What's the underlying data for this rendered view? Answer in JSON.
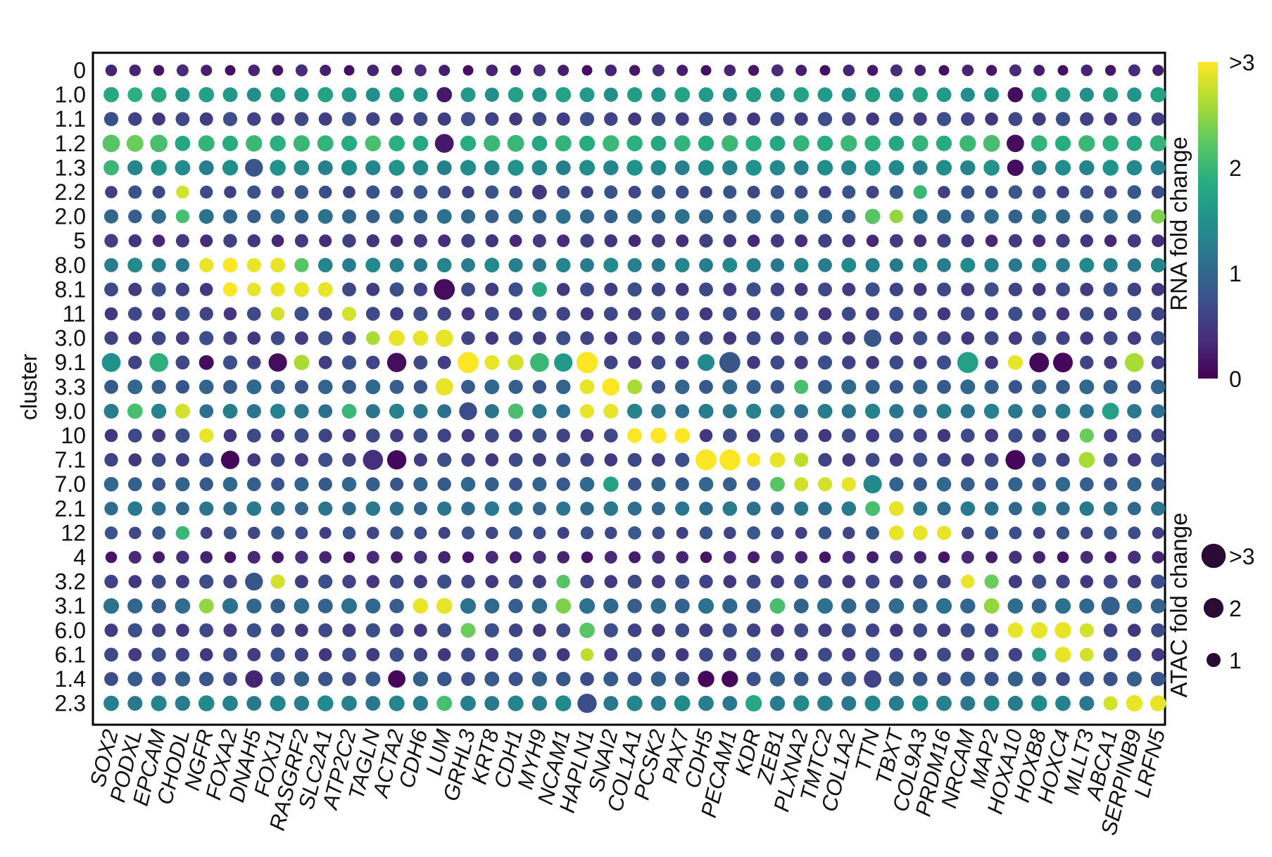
{
  "chart_data": {
    "type": "dot-matrix",
    "ylabel": "cluster",
    "xlabel": "",
    "rows": [
      "0",
      "1.0",
      "1.1",
      "1.2",
      "1.3",
      "2.2",
      "2.0",
      "5",
      "8.0",
      "8.1",
      "11",
      "3.0",
      "9.1",
      "3.3",
      "9.0",
      "10",
      "7.1",
      "7.0",
      "2.1",
      "12",
      "4",
      "3.2",
      "3.1",
      "6.0",
      "6.1",
      "1.4",
      "2.3"
    ],
    "columns": [
      "SOX2",
      "PODXL",
      "EPCAM",
      "CHODL",
      "NGFR",
      "FOXA2",
      "DNAH5",
      "FOXJ1",
      "RASGRF2",
      "SLC2A1",
      "ATP2C2",
      "TAGLN",
      "ACTA2",
      "CDH6",
      "LUM",
      "GRHL3",
      "KRT8",
      "CDH1",
      "MYH9",
      "NCAM1",
      "HAPLN1",
      "SNAI2",
      "COL1A1",
      "PCSK2",
      "PAX7",
      "CDH5",
      "PECAM1",
      "KDR",
      "ZEB1",
      "PLXNA2",
      "TMTC2",
      "COL1A2",
      "TTN",
      "TBXT",
      "COL9A3",
      "PRDM16",
      "NRCAM",
      "MAP2",
      "HOXA10",
      "HOXB8",
      "HOXC4",
      "MLLT3",
      "ABCA1",
      "SERPINB9",
      "LRFN5"
    ],
    "color_encoding": {
      "title": "RNA fold change",
      "colormap": "viridis",
      "range": [
        0,
        3
      ],
      "tick_labels": [
        "0",
        "1",
        "2",
        ">3"
      ]
    },
    "size_encoding": {
      "title": "ATAC fold change",
      "range": [
        0,
        3
      ],
      "legend_values": [
        1,
        2,
        3
      ],
      "legend_labels": [
        "1",
        "2",
        ">3"
      ]
    },
    "default_cell": {
      "rna": 0.6,
      "atac": 1.1
    },
    "row_defaults": {
      "0": {
        "rna": 0.25,
        "atac": 0.75
      },
      "1.0": {
        "rna": 1.6,
        "atac": 1.3
      },
      "1.2": {
        "rna": 1.9,
        "atac": 1.5
      },
      "1.3": {
        "rna": 1.4,
        "atac": 1.4
      },
      "2.2": {
        "rna": 0.7,
        "atac": 1.0
      },
      "2.0": {
        "rna": 1.0,
        "atac": 1.2
      },
      "5": {
        "rna": 0.45,
        "atac": 1.0
      },
      "8.0": {
        "rna": 1.3,
        "atac": 1.2
      },
      "3.3": {
        "rna": 0.9,
        "atac": 1.2
      },
      "9.0": {
        "rna": 1.2,
        "atac": 1.25
      },
      "7.0": {
        "rna": 0.9,
        "atac": 1.15
      },
      "2.1": {
        "rna": 1.1,
        "atac": 1.15
      },
      "12": {
        "rna": 0.7,
        "atac": 0.95
      },
      "4": {
        "rna": 0.3,
        "atac": 0.9
      },
      "3.1": {
        "rna": 1.0,
        "atac": 1.35
      },
      "1.4": {
        "rna": 0.8,
        "atac": 1.25
      },
      "2.3": {
        "rna": 1.3,
        "atac": 1.4
      }
    },
    "highlights": [
      {
        "row": "0",
        "col": "SOX2",
        "rna": 0.3,
        "atac": 0.8
      },
      {
        "row": "1.0",
        "col": "SOX2",
        "rna": 1.8,
        "atac": 1.4
      },
      {
        "row": "1.0",
        "col": "PODXL",
        "rna": 1.9,
        "atac": 1.3
      },
      {
        "row": "1.0",
        "col": "EPCAM",
        "rna": 1.8,
        "atac": 1.4
      },
      {
        "row": "1.0",
        "col": "LUM",
        "rna": 0.2,
        "atac": 1.4
      },
      {
        "row": "1.0",
        "col": "CDH1",
        "rna": 1.7,
        "atac": 1.4
      },
      {
        "row": "1.0",
        "col": "HOXA10",
        "rna": 0.1,
        "atac": 1.4
      },
      {
        "row": "1.0",
        "col": "MAP2",
        "rna": 1.5,
        "atac": 1.3
      },
      {
        "row": "1.2",
        "col": "SOX2",
        "rna": 2.2,
        "atac": 1.8
      },
      {
        "row": "1.2",
        "col": "PODXL",
        "rna": 2.3,
        "atac": 1.7
      },
      {
        "row": "1.2",
        "col": "EPCAM",
        "rna": 2.1,
        "atac": 1.8
      },
      {
        "row": "1.2",
        "col": "LUM",
        "rna": 0.2,
        "atac": 2.1
      },
      {
        "row": "1.2",
        "col": "RASGRF2",
        "rna": 2.0,
        "atac": 1.6
      },
      {
        "row": "1.2",
        "col": "TAGLN",
        "rna": 2.1,
        "atac": 1.5
      },
      {
        "row": "1.2",
        "col": "CDH1",
        "rna": 2.0,
        "atac": 1.7
      },
      {
        "row": "1.2",
        "col": "MAP2",
        "rna": 2.1,
        "atac": 1.7
      },
      {
        "row": "1.2",
        "col": "HOXA10",
        "rna": 0.1,
        "atac": 1.8
      },
      {
        "row": "1.3",
        "col": "SOX2",
        "rna": 2.0,
        "atac": 1.4
      },
      {
        "row": "1.3",
        "col": "DNAH5",
        "rna": 0.8,
        "atac": 1.9
      },
      {
        "row": "1.3",
        "col": "HOXA10",
        "rna": 0.1,
        "atac": 1.6
      },
      {
        "row": "2.2",
        "col": "CHODL",
        "rna": 2.8,
        "atac": 1.0
      },
      {
        "row": "2.2",
        "col": "MYH9",
        "rna": 0.5,
        "atac": 1.3
      },
      {
        "row": "2.2",
        "col": "COL9A3",
        "rna": 2.0,
        "atac": 1.1
      },
      {
        "row": "2.0",
        "col": "CHODL",
        "rna": 2.1,
        "atac": 1.1
      },
      {
        "row": "2.0",
        "col": "TTN",
        "rna": 2.2,
        "atac": 1.4
      },
      {
        "row": "2.0",
        "col": "TBXT",
        "rna": 2.5,
        "atac": 1.1
      },
      {
        "row": "2.0",
        "col": "LRFN5",
        "rna": 2.4,
        "atac": 1.2
      },
      {
        "row": "8.0",
        "col": "NGFR",
        "rna": 2.9,
        "atac": 1.2
      },
      {
        "row": "8.0",
        "col": "FOXA2",
        "rna": 3.0,
        "atac": 1.3
      },
      {
        "row": "8.0",
        "col": "DNAH5",
        "rna": 2.9,
        "atac": 1.2
      },
      {
        "row": "8.0",
        "col": "FOXJ1",
        "rna": 2.9,
        "atac": 1.3
      },
      {
        "row": "8.0",
        "col": "RASGRF2",
        "rna": 2.2,
        "atac": 1.2
      },
      {
        "row": "8.1",
        "col": "FOXA2",
        "rna": 3.0,
        "atac": 1.2
      },
      {
        "row": "8.1",
        "col": "DNAH5",
        "rna": 2.9,
        "atac": 1.1
      },
      {
        "row": "8.1",
        "col": "FOXJ1",
        "rna": 2.9,
        "atac": 1.2
      },
      {
        "row": "8.1",
        "col": "RASGRF2",
        "rna": 2.9,
        "atac": 1.3
      },
      {
        "row": "8.1",
        "col": "SLC2A1",
        "rna": 2.9,
        "atac": 1.3
      },
      {
        "row": "8.1",
        "col": "LUM",
        "rna": 0.1,
        "atac": 2.6
      },
      {
        "row": "8.1",
        "col": "MYH9",
        "rna": 1.8,
        "atac": 1.3
      },
      {
        "row": "11",
        "col": "FOXJ1",
        "rna": 2.8,
        "atac": 1.1
      },
      {
        "row": "11",
        "col": "ATP2C2",
        "rna": 2.8,
        "atac": 1.2
      },
      {
        "row": "3.0",
        "col": "TAGLN",
        "rna": 2.6,
        "atac": 1.1
      },
      {
        "row": "3.0",
        "col": "ACTA2",
        "rna": 2.9,
        "atac": 1.5
      },
      {
        "row": "3.0",
        "col": "CDH6",
        "rna": 2.9,
        "atac": 1.4
      },
      {
        "row": "3.0",
        "col": "LUM",
        "rna": 2.9,
        "atac": 1.8
      },
      {
        "row": "3.0",
        "col": "TTN",
        "rna": 0.8,
        "atac": 1.8
      },
      {
        "row": "9.1",
        "col": "SOX2",
        "rna": 1.5,
        "atac": 2.1
      },
      {
        "row": "9.1",
        "col": "EPCAM",
        "rna": 1.9,
        "atac": 2.1
      },
      {
        "row": "9.1",
        "col": "NGFR",
        "rna": 0.1,
        "atac": 1.3
      },
      {
        "row": "9.1",
        "col": "FOXJ1",
        "rna": 0.1,
        "atac": 2.0
      },
      {
        "row": "9.1",
        "col": "RASGRF2",
        "rna": 2.6,
        "atac": 1.4
      },
      {
        "row": "9.1",
        "col": "ACTA2",
        "rna": 0.1,
        "atac": 2.2
      },
      {
        "row": "9.1",
        "col": "GRHL3",
        "rna": 3.0,
        "atac": 2.6
      },
      {
        "row": "9.1",
        "col": "KRT8",
        "rna": 2.9,
        "atac": 1.3
      },
      {
        "row": "9.1",
        "col": "CDH1",
        "rna": 2.8,
        "atac": 1.5
      },
      {
        "row": "9.1",
        "col": "MYH9",
        "rna": 2.0,
        "atac": 2.1
      },
      {
        "row": "9.1",
        "col": "NCAM1",
        "rna": 1.6,
        "atac": 2.0
      },
      {
        "row": "9.1",
        "col": "HAPLN1",
        "rna": 3.0,
        "atac": 2.7
      },
      {
        "row": "9.1",
        "col": "PECAM1",
        "rna": 0.8,
        "atac": 2.6
      },
      {
        "row": "9.1",
        "col": "CDH5",
        "rna": 1.4,
        "atac": 1.7
      },
      {
        "row": "9.1",
        "col": "NRCAM",
        "rna": 1.7,
        "atac": 2.6
      },
      {
        "row": "9.1",
        "col": "HOXB8",
        "rna": 0.05,
        "atac": 2.3
      },
      {
        "row": "9.1",
        "col": "HOXC4",
        "rna": 0.05,
        "atac": 2.3
      },
      {
        "row": "9.1",
        "col": "HOXA10",
        "rna": 2.9,
        "atac": 1.3
      },
      {
        "row": "9.1",
        "col": "SERPINB9",
        "rna": 2.6,
        "atac": 2.1
      },
      {
        "row": "3.3",
        "col": "LUM",
        "rna": 2.9,
        "atac": 1.8
      },
      {
        "row": "3.3",
        "col": "HAPLN1",
        "rna": 2.9,
        "atac": 1.3
      },
      {
        "row": "3.3",
        "col": "SNAI2",
        "rna": 3.0,
        "atac": 1.8
      },
      {
        "row": "3.3",
        "col": "COL1A1",
        "rna": 2.6,
        "atac": 1.3
      },
      {
        "row": "3.3",
        "col": "PLXNA2",
        "rna": 2.1,
        "atac": 1.2
      },
      {
        "row": "9.0",
        "col": "PODXL",
        "rna": 2.1,
        "atac": 1.4
      },
      {
        "row": "9.0",
        "col": "CHODL",
        "rna": 2.8,
        "atac": 1.3
      },
      {
        "row": "9.0",
        "col": "ATP2C2",
        "rna": 2.0,
        "atac": 1.3
      },
      {
        "row": "9.0",
        "col": "GRHL3",
        "rna": 0.7,
        "atac": 1.9
      },
      {
        "row": "9.0",
        "col": "CDH1",
        "rna": 2.1,
        "atac": 1.4
      },
      {
        "row": "9.0",
        "col": "HAPLN1",
        "rna": 2.9,
        "atac": 1.2
      },
      {
        "row": "9.0",
        "col": "SNAI2",
        "rna": 2.9,
        "atac": 1.3
      },
      {
        "row": "9.0",
        "col": "ABCA1",
        "rna": 1.7,
        "atac": 1.7
      },
      {
        "row": "10",
        "col": "NGFR",
        "rna": 2.9,
        "atac": 1.2
      },
      {
        "row": "10",
        "col": "COL1A1",
        "rna": 3.0,
        "atac": 1.3
      },
      {
        "row": "10",
        "col": "PCSK2",
        "rna": 3.0,
        "atac": 1.5
      },
      {
        "row": "10",
        "col": "PAX7",
        "rna": 3.0,
        "atac": 1.4
      },
      {
        "row": "10",
        "col": "MLLT3",
        "rna": 2.3,
        "atac": 1.2
      },
      {
        "row": "7.1",
        "col": "FOXA2",
        "rna": 0.05,
        "atac": 2.0
      },
      {
        "row": "7.1",
        "col": "TAGLN",
        "rna": 0.4,
        "atac": 2.4
      },
      {
        "row": "7.1",
        "col": "ACTA2",
        "rna": 0.05,
        "atac": 2.2
      },
      {
        "row": "7.1",
        "col": "CDH5",
        "rna": 3.0,
        "atac": 2.6
      },
      {
        "row": "7.1",
        "col": "PECAM1",
        "rna": 3.0,
        "atac": 2.6
      },
      {
        "row": "7.1",
        "col": "KDR",
        "rna": 3.0,
        "atac": 1.1
      },
      {
        "row": "7.1",
        "col": "ZEB1",
        "rna": 2.9,
        "atac": 1.4
      },
      {
        "row": "7.1",
        "col": "PLXNA2",
        "rna": 2.7,
        "atac": 1.2
      },
      {
        "row": "7.1",
        "col": "HOXA10",
        "rna": 0.05,
        "atac": 2.3
      },
      {
        "row": "7.1",
        "col": "MLLT3",
        "rna": 2.6,
        "atac": 1.5
      },
      {
        "row": "7.0",
        "col": "ZEB1",
        "rna": 2.2,
        "atac": 1.3
      },
      {
        "row": "7.0",
        "col": "PLXNA2",
        "rna": 2.8,
        "atac": 1.2
      },
      {
        "row": "7.0",
        "col": "TMTC2",
        "rna": 2.8,
        "atac": 1.2
      },
      {
        "row": "7.0",
        "col": "COL1A2",
        "rna": 2.9,
        "atac": 1.2
      },
      {
        "row": "7.0",
        "col": "TTN",
        "rna": 1.4,
        "atac": 2.0
      },
      {
        "row": "7.0",
        "col": "SNAI2",
        "rna": 1.7,
        "atac": 1.4
      },
      {
        "row": "2.1",
        "col": "TTN",
        "rna": 2.1,
        "atac": 1.3
      },
      {
        "row": "2.1",
        "col": "TBXT",
        "rna": 2.9,
        "atac": 1.3
      },
      {
        "row": "12",
        "col": "CHODL",
        "rna": 2.0,
        "atac": 1.1
      },
      {
        "row": "12",
        "col": "TBXT",
        "rna": 2.9,
        "atac": 1.3
      },
      {
        "row": "12",
        "col": "COL9A3",
        "rna": 2.9,
        "atac": 1.3
      },
      {
        "row": "12",
        "col": "PRDM16",
        "rna": 2.9,
        "atac": 1.2
      },
      {
        "row": "3.2",
        "col": "DNAH5",
        "rna": 0.8,
        "atac": 1.9
      },
      {
        "row": "3.2",
        "col": "FOXJ1",
        "rna": 2.8,
        "atac": 1.2
      },
      {
        "row": "3.2",
        "col": "NRCAM",
        "rna": 2.9,
        "atac": 1.1
      },
      {
        "row": "3.2",
        "col": "MAP2",
        "rna": 2.3,
        "atac": 1.2
      },
      {
        "row": "3.2",
        "col": "NCAM1",
        "rna": 2.2,
        "atac": 1.1
      },
      {
        "row": "3.1",
        "col": "NGFR",
        "rna": 2.5,
        "atac": 1.3
      },
      {
        "row": "3.1",
        "col": "CDH6",
        "rna": 2.9,
        "atac": 1.4
      },
      {
        "row": "3.1",
        "col": "LUM",
        "rna": 2.9,
        "atac": 1.5
      },
      {
        "row": "3.1",
        "col": "NCAM1",
        "rna": 2.4,
        "atac": 1.4
      },
      {
        "row": "3.1",
        "col": "ZEB1",
        "rna": 2.1,
        "atac": 1.4
      },
      {
        "row": "3.1",
        "col": "MAP2",
        "rna": 2.5,
        "atac": 1.4
      },
      {
        "row": "3.1",
        "col": "ABCA1",
        "rna": 0.9,
        "atac": 2.0
      },
      {
        "row": "6.0",
        "col": "GRHL3",
        "rna": 2.3,
        "atac": 1.3
      },
      {
        "row": "6.0",
        "col": "HAPLN1",
        "rna": 2.2,
        "atac": 1.4
      },
      {
        "row": "6.0",
        "col": "HOXA10",
        "rna": 2.9,
        "atac": 1.4
      },
      {
        "row": "6.0",
        "col": "HOXB8",
        "rna": 2.9,
        "atac": 1.6
      },
      {
        "row": "6.0",
        "col": "HOXC4",
        "rna": 2.9,
        "atac": 1.6
      },
      {
        "row": "6.0",
        "col": "MLLT3",
        "rna": 2.8,
        "atac": 1.2
      },
      {
        "row": "6.1",
        "col": "HAPLN1",
        "rna": 2.7,
        "atac": 1.0
      },
      {
        "row": "6.1",
        "col": "HOXC4",
        "rna": 2.9,
        "atac": 1.5
      },
      {
        "row": "6.1",
        "col": "MLLT3",
        "rna": 2.8,
        "atac": 1.1
      },
      {
        "row": "6.1",
        "col": "HOXB8",
        "rna": 1.6,
        "atac": 1.2
      },
      {
        "row": "1.4",
        "col": "DNAH5",
        "rna": 0.3,
        "atac": 1.8
      },
      {
        "row": "1.4",
        "col": "ACTA2",
        "rna": 0.05,
        "atac": 1.8
      },
      {
        "row": "1.4",
        "col": "CDH5",
        "rna": 0.05,
        "atac": 1.6
      },
      {
        "row": "1.4",
        "col": "PECAM1",
        "rna": 0.05,
        "atac": 1.6
      },
      {
        "row": "1.4",
        "col": "TTN",
        "rna": 0.6,
        "atac": 1.8
      },
      {
        "row": "2.3",
        "col": "HAPLN1",
        "rna": 0.7,
        "atac": 2.2
      },
      {
        "row": "2.3",
        "col": "LUM",
        "rna": 2.1,
        "atac": 1.4
      },
      {
        "row": "2.3",
        "col": "KDR",
        "rna": 1.8,
        "atac": 1.6
      },
      {
        "row": "2.3",
        "col": "ABCA1",
        "rna": 2.8,
        "atac": 1.2
      },
      {
        "row": "2.3",
        "col": "SERPINB9",
        "rna": 2.9,
        "atac": 1.6
      },
      {
        "row": "2.3",
        "col": "LRFN5",
        "rna": 2.9,
        "atac": 1.5
      }
    ]
  }
}
